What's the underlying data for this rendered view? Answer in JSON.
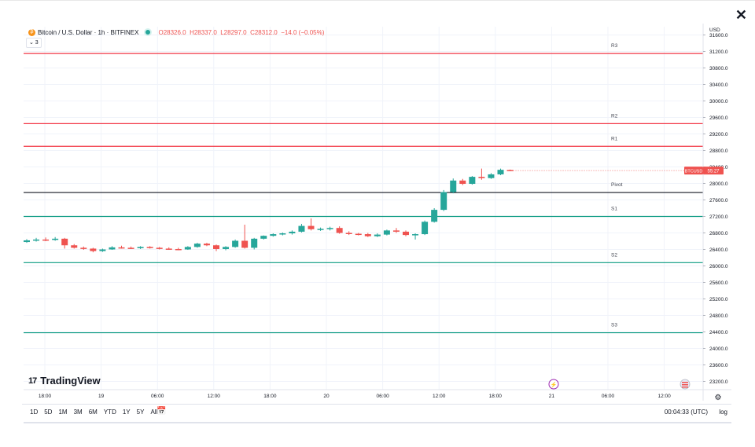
{
  "header": {
    "symbol_title": "Bitcoin / U.S. Dollar · 1h · BITFINEX",
    "open": "O28326.0",
    "high": "H28337.0",
    "low": "L28297.0",
    "close": "C28312.0",
    "change": "−14.0 (−0.05%)",
    "indicator_collapse": "⌄ 3",
    "close_glyph": "✕",
    "currency": "USD"
  },
  "branding": {
    "logo_mark": "17",
    "logo_text": "TradingView"
  },
  "bottom_bar": {
    "ranges": [
      "1D",
      "5D",
      "1M",
      "3M",
      "6M",
      "YTD",
      "1Y",
      "5Y",
      "All"
    ],
    "clock": "00:04:33 (UTC)",
    "log_label": "log"
  },
  "price_tag": {
    "symbol": "BTCUSD",
    "countdown": "55:27",
    "color": "#ef5350"
  },
  "colors": {
    "up": "#26a69a",
    "down": "#ef5350",
    "resistance": "#f23645",
    "support": "#089981",
    "pivot": "#131722"
  },
  "chart_data": {
    "type": "candlestick",
    "title": "Bitcoin / U.S. Dollar · 1h · BITFINEX",
    "ylim": [
      23000,
      31800
    ],
    "y_ticks": [
      "31600.0",
      "31200.0",
      "30800.0",
      "30400.0",
      "30000.0",
      "29600.0",
      "29200.0",
      "28800.0",
      "28400.0",
      "28000.0",
      "27600.0",
      "27200.0",
      "26800.0",
      "26400.0",
      "26000.0",
      "25600.0",
      "25200.0",
      "24800.0",
      "24400.0",
      "24000.0",
      "23600.0",
      "23200.0"
    ],
    "x_ticks": [
      "18:00",
      "19",
      "06:00",
      "12:00",
      "18:00",
      "20",
      "06:00",
      "12:00",
      "18:00",
      "21",
      "06:00",
      "12:00"
    ],
    "grid": true,
    "pivot_levels": [
      {
        "name": "R3",
        "value": 31150,
        "kind": "resistance"
      },
      {
        "name": "R2",
        "value": 29450,
        "kind": "resistance"
      },
      {
        "name": "R1",
        "value": 28900,
        "kind": "resistance"
      },
      {
        "name": "Pivot",
        "value": 27780,
        "kind": "pivot"
      },
      {
        "name": "S1",
        "value": 27200,
        "kind": "support"
      },
      {
        "name": "S2",
        "value": 26080,
        "kind": "support"
      },
      {
        "name": "S3",
        "value": 24380,
        "kind": "support"
      }
    ],
    "candles": [
      {
        "o": 26580,
        "h": 26650,
        "l": 26560,
        "c": 26620
      },
      {
        "o": 26620,
        "h": 26680,
        "l": 26590,
        "c": 26640
      },
      {
        "o": 26640,
        "h": 26690,
        "l": 26600,
        "c": 26630
      },
      {
        "o": 26630,
        "h": 26700,
        "l": 26610,
        "c": 26660
      },
      {
        "o": 26660,
        "h": 26680,
        "l": 26420,
        "c": 26500
      },
      {
        "o": 26500,
        "h": 26530,
        "l": 26420,
        "c": 26440
      },
      {
        "o": 26440,
        "h": 26470,
        "l": 26390,
        "c": 26420
      },
      {
        "o": 26420,
        "h": 26440,
        "l": 26330,
        "c": 26360
      },
      {
        "o": 26360,
        "h": 26420,
        "l": 26340,
        "c": 26400
      },
      {
        "o": 26400,
        "h": 26480,
        "l": 26390,
        "c": 26450
      },
      {
        "o": 26450,
        "h": 26490,
        "l": 26420,
        "c": 26440
      },
      {
        "o": 26440,
        "h": 26470,
        "l": 26410,
        "c": 26430
      },
      {
        "o": 26430,
        "h": 26480,
        "l": 26410,
        "c": 26460
      },
      {
        "o": 26460,
        "h": 26480,
        "l": 26420,
        "c": 26440
      },
      {
        "o": 26440,
        "h": 26460,
        "l": 26400,
        "c": 26420
      },
      {
        "o": 26420,
        "h": 26450,
        "l": 26390,
        "c": 26410
      },
      {
        "o": 26410,
        "h": 26440,
        "l": 26380,
        "c": 26400
      },
      {
        "o": 26400,
        "h": 26480,
        "l": 26390,
        "c": 26460
      },
      {
        "o": 26460,
        "h": 26560,
        "l": 26440,
        "c": 26540
      },
      {
        "o": 26540,
        "h": 26560,
        "l": 26480,
        "c": 26500
      },
      {
        "o": 26500,
        "h": 26520,
        "l": 26360,
        "c": 26410
      },
      {
        "o": 26410,
        "h": 26480,
        "l": 26380,
        "c": 26460
      },
      {
        "o": 26460,
        "h": 26640,
        "l": 26440,
        "c": 26610
      },
      {
        "o": 26610,
        "h": 27000,
        "l": 26420,
        "c": 26440
      },
      {
        "o": 26440,
        "h": 26680,
        "l": 26400,
        "c": 26660
      },
      {
        "o": 26660,
        "h": 26740,
        "l": 26640,
        "c": 26730
      },
      {
        "o": 26730,
        "h": 26790,
        "l": 26710,
        "c": 26770
      },
      {
        "o": 26770,
        "h": 26810,
        "l": 26740,
        "c": 26790
      },
      {
        "o": 26790,
        "h": 26860,
        "l": 26760,
        "c": 26830
      },
      {
        "o": 26830,
        "h": 27020,
        "l": 26810,
        "c": 26970
      },
      {
        "o": 26970,
        "h": 27150,
        "l": 26860,
        "c": 26890
      },
      {
        "o": 26890,
        "h": 26930,
        "l": 26850,
        "c": 26900
      },
      {
        "o": 26900,
        "h": 26950,
        "l": 26860,
        "c": 26920
      },
      {
        "o": 26920,
        "h": 26960,
        "l": 26780,
        "c": 26800
      },
      {
        "o": 26800,
        "h": 26840,
        "l": 26750,
        "c": 26780
      },
      {
        "o": 26780,
        "h": 26800,
        "l": 26740,
        "c": 26770
      },
      {
        "o": 26770,
        "h": 26800,
        "l": 26700,
        "c": 26720
      },
      {
        "o": 26720,
        "h": 26790,
        "l": 26700,
        "c": 26760
      },
      {
        "o": 26760,
        "h": 26880,
        "l": 26740,
        "c": 26860
      },
      {
        "o": 26860,
        "h": 26920,
        "l": 26800,
        "c": 26830
      },
      {
        "o": 26830,
        "h": 26860,
        "l": 26720,
        "c": 26750
      },
      {
        "o": 26750,
        "h": 26790,
        "l": 26640,
        "c": 26770
      },
      {
        "o": 26770,
        "h": 27100,
        "l": 26750,
        "c": 27070
      },
      {
        "o": 27070,
        "h": 27400,
        "l": 27050,
        "c": 27360
      },
      {
        "o": 27360,
        "h": 27840,
        "l": 27330,
        "c": 27790
      },
      {
        "o": 27790,
        "h": 28120,
        "l": 27760,
        "c": 28070
      },
      {
        "o": 28070,
        "h": 28110,
        "l": 27960,
        "c": 27990
      },
      {
        "o": 27990,
        "h": 28180,
        "l": 27970,
        "c": 28160
      },
      {
        "o": 28160,
        "h": 28360,
        "l": 28090,
        "c": 28130
      },
      {
        "o": 28130,
        "h": 28250,
        "l": 28110,
        "c": 28220
      },
      {
        "o": 28220,
        "h": 28360,
        "l": 28200,
        "c": 28330
      },
      {
        "o": 28326,
        "h": 28337,
        "l": 28297,
        "c": 28312
      }
    ]
  }
}
